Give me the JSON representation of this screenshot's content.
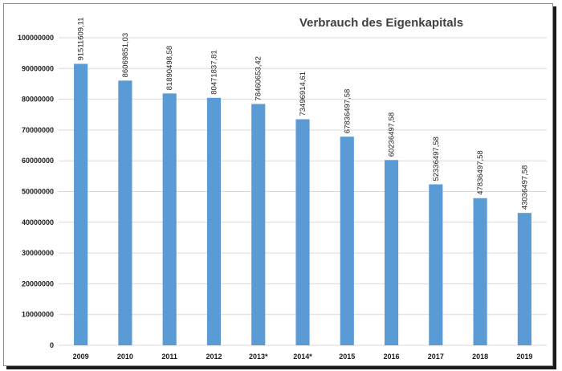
{
  "colors": {
    "bar": "#5b9bd5",
    "grid": "#d9d9d9",
    "frame": "#8a8a8a"
  },
  "chart_data": {
    "type": "bar",
    "title": "Verbrauch des Eigenkapitals",
    "xlabel": "",
    "ylabel": "",
    "ylim": [
      0,
      100000000
    ],
    "yticks": [
      0,
      10000000,
      20000000,
      30000000,
      40000000,
      50000000,
      60000000,
      70000000,
      80000000,
      90000000,
      100000000
    ],
    "ytick_labels": [
      "0",
      "10000000",
      "20000000",
      "30000000",
      "40000000",
      "50000000",
      "60000000",
      "70000000",
      "80000000",
      "90000000",
      "100000000"
    ],
    "grid": true,
    "legend": "none",
    "categories": [
      "2009",
      "2010",
      "2011",
      "2012",
      "2013*",
      "2014*",
      "2015",
      "2016",
      "2017",
      "2018",
      "2019"
    ],
    "values": [
      91511609.11,
      86069851.03,
      81890498.58,
      80471837.81,
      78460653.42,
      73496914.61,
      67836497.58,
      60236497.58,
      52336497.58,
      47836497.58,
      43036497.58
    ],
    "data_labels": [
      "91511609,11",
      "86069851,03",
      "81890498,58",
      "80471837,81",
      "78460653,42",
      "73496914,61",
      "67836497,58",
      "60236497,58",
      "52336497,58",
      "47836497,58",
      "43036497,58"
    ]
  }
}
